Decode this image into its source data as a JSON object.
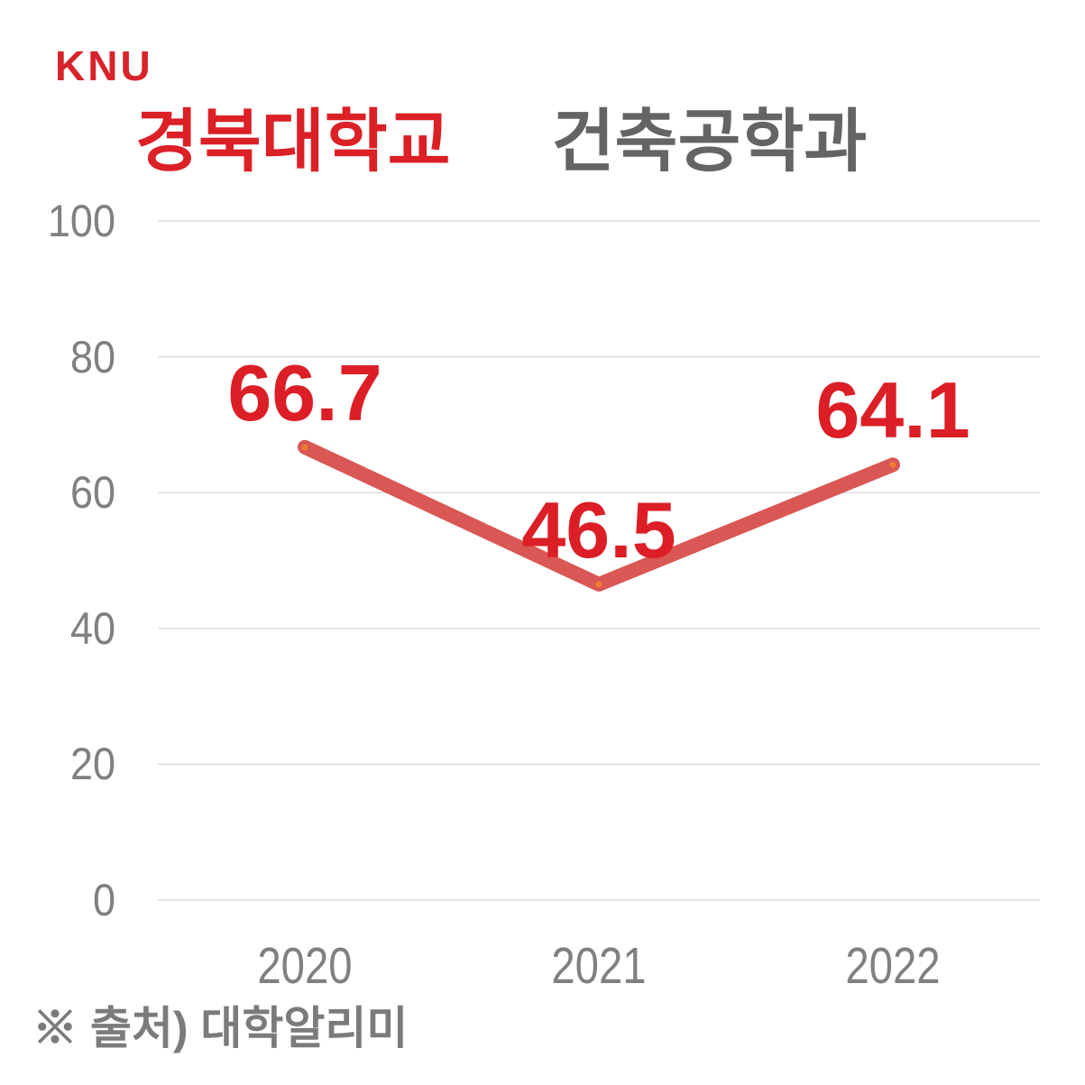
{
  "header": {
    "logo": "KNU",
    "title_university": "경북대학교",
    "title_department": "건축공학과"
  },
  "footer": {
    "source": "※ 출처) 대학알리미"
  },
  "colors": {
    "brand_red": "#d8232a",
    "title_red": "#db2026",
    "title_gray": "#646464",
    "label_red": "#dc1e26",
    "line": "#d95754",
    "marker": "#ef7d2e",
    "axis_text": "#808080",
    "gridline": "#dcdcdc",
    "footer_gray": "#7b7b7b"
  },
  "chart_data": {
    "type": "line",
    "title": "경북대학교 건축공학과",
    "categories": [
      "2020",
      "2021",
      "2022"
    ],
    "values": [
      66.7,
      46.5,
      64.1
    ],
    "data_labels": [
      "66.7",
      "46.5",
      "64.1"
    ],
    "xlabel": "",
    "ylabel": "",
    "ylim": [
      0,
      100
    ],
    "yticks": [
      100,
      80,
      60,
      40,
      20,
      0
    ],
    "grid": true,
    "legend": false,
    "series": [
      {
        "name": "경북대학교 건축공학과",
        "values": [
          66.7,
          46.5,
          64.1
        ]
      }
    ]
  }
}
